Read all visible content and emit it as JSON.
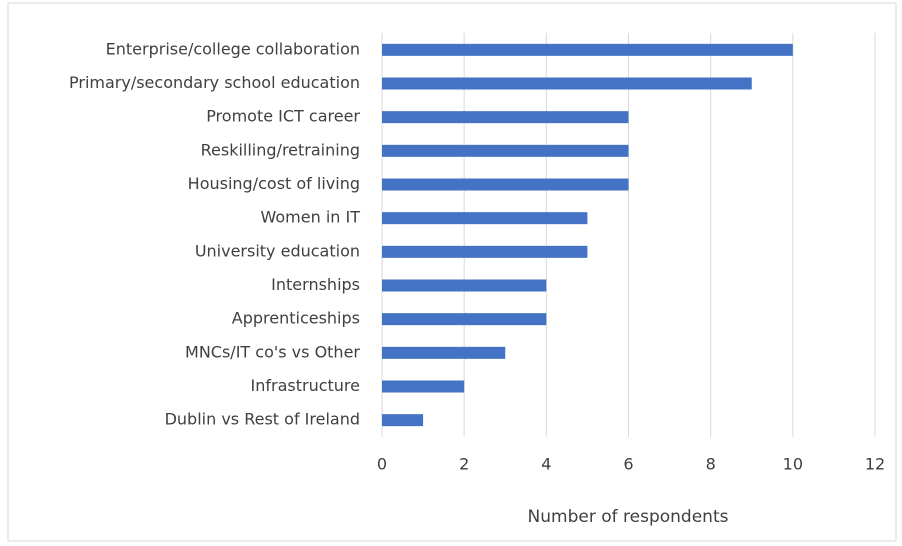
{
  "chart_data": {
    "type": "hbar",
    "categories": [
      "Enterprise/college collaboration",
      "Primary/secondary school education",
      "Promote ICT career",
      "Reskilling/retraining",
      "Housing/cost of living",
      "Women in IT",
      "University education",
      "Internships",
      "Apprenticeships",
      "MNCs/IT co's vs Other",
      "Infrastructure",
      "Dublin vs Rest of Ireland"
    ],
    "values": [
      10,
      9,
      6,
      6,
      6,
      5,
      5,
      4,
      4,
      3,
      2,
      1
    ],
    "color": "#4472c4",
    "x_label": "Number of respondents",
    "xlim": [
      0,
      12
    ],
    "xticks": [
      0,
      2,
      4,
      6,
      8,
      10,
      12
    ],
    "grid": true
  }
}
